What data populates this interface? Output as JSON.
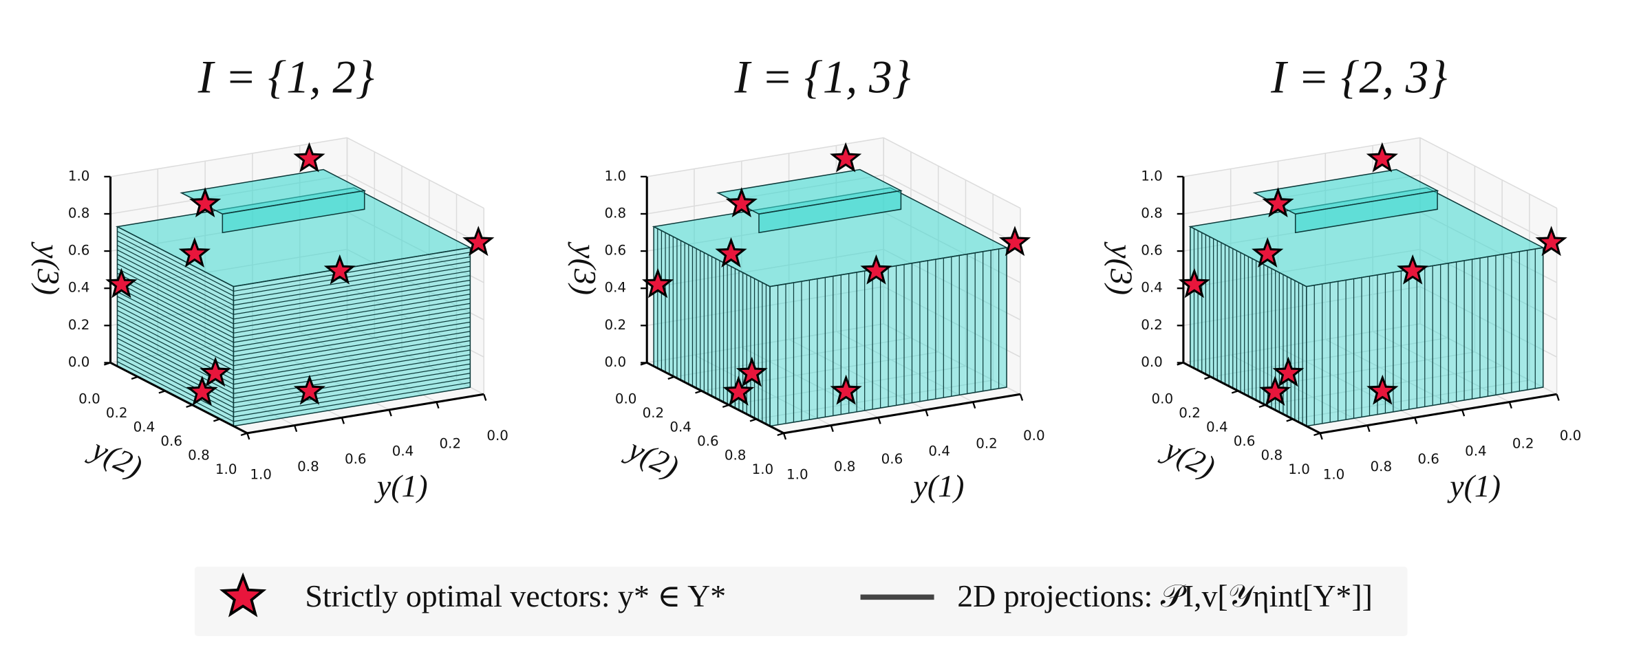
{
  "chart_data": [
    {
      "type": "scatter3d",
      "title": "I = {1, 2}",
      "xlabel": "y(1)",
      "ylabel": "y(2)",
      "zlabel": "y(3)",
      "xlim": [
        0,
        1
      ],
      "ylim": [
        0,
        1
      ],
      "zlim": [
        0,
        1
      ],
      "xticks": [
        {
          "value": 0,
          "label": "0.0"
        },
        {
          "value": 0.2,
          "label": "0.2"
        },
        {
          "value": 0.4,
          "label": "0.4"
        },
        {
          "value": 0.6,
          "label": "0.6"
        },
        {
          "value": 0.8,
          "label": "0.8"
        },
        {
          "value": 1,
          "label": "1.0"
        }
      ],
      "yticks": [
        {
          "value": 0,
          "label": "0.0"
        },
        {
          "value": 0.2,
          "label": "0.2"
        },
        {
          "value": 0.4,
          "label": "0.4"
        },
        {
          "value": 0.6,
          "label": "0.6"
        },
        {
          "value": 0.8,
          "label": "0.8"
        },
        {
          "value": 1,
          "label": "1.0"
        }
      ],
      "zticks": [
        {
          "value": 0,
          "label": "0.0"
        },
        {
          "value": 0.2,
          "label": "0.2"
        },
        {
          "value": 0.4,
          "label": "0.4"
        },
        {
          "value": 0.6,
          "label": "0.6"
        },
        {
          "value": 0.8,
          "label": "0.8"
        },
        {
          "value": 1,
          "label": "1.0"
        }
      ],
      "color": "#e8163c",
      "points": {
        "x": [
          1,
          0.6,
          0.76,
          0.16,
          0.32,
          0,
          0.73,
          0.89,
          0.54
        ],
        "y": [
          0.08,
          0,
          0.2,
          0,
          0.5,
          0.96,
          0.3,
          0.48,
          0.66
        ],
        "z": [
          0.45,
          0.77,
          0.61,
          0.92,
          0.54,
          0.8,
          0,
          0,
          0
        ]
      }
    },
    {
      "type": "scatter3d",
      "title": "I = {1, 3}",
      "xlabel": "y(1)",
      "ylabel": "y(2)",
      "zlabel": "y(3)",
      "xlim": [
        0,
        1
      ],
      "ylim": [
        0,
        1
      ],
      "zlim": [
        0,
        1
      ],
      "xticks": [
        {
          "value": 0,
          "label": "0.0"
        },
        {
          "value": 0.2,
          "label": "0.2"
        },
        {
          "value": 0.4,
          "label": "0.4"
        },
        {
          "value": 0.6,
          "label": "0.6"
        },
        {
          "value": 0.8,
          "label": "0.8"
        },
        {
          "value": 1,
          "label": "1.0"
        }
      ],
      "yticks": [
        {
          "value": 0,
          "label": "0.0"
        },
        {
          "value": 0.2,
          "label": "0.2"
        },
        {
          "value": 0.4,
          "label": "0.4"
        },
        {
          "value": 0.6,
          "label": "0.6"
        },
        {
          "value": 0.8,
          "label": "0.8"
        },
        {
          "value": 1,
          "label": "1.0"
        }
      ],
      "zticks": [
        {
          "value": 0,
          "label": "0.0"
        },
        {
          "value": 0.2,
          "label": "0.2"
        },
        {
          "value": 0.4,
          "label": "0.4"
        },
        {
          "value": 0.6,
          "label": "0.6"
        },
        {
          "value": 0.8,
          "label": "0.8"
        },
        {
          "value": 1,
          "label": "1.0"
        }
      ],
      "color": "#e8163c",
      "points": {
        "x": [
          1,
          0.6,
          0.76,
          0.16,
          0.32,
          0,
          0.73,
          0.89,
          0.54
        ],
        "y": [
          0.08,
          0,
          0.2,
          0,
          0.5,
          0.96,
          0.3,
          0.48,
          0.66
        ],
        "z": [
          0.45,
          0.77,
          0.61,
          0.92,
          0.54,
          0.8,
          0,
          0,
          0
        ]
      }
    },
    {
      "type": "scatter3d",
      "title": "I = {2, 3}",
      "xlabel": "y(1)",
      "ylabel": "y(2)",
      "zlabel": "y(3)",
      "xlim": [
        0,
        1
      ],
      "ylim": [
        0,
        1
      ],
      "zlim": [
        0,
        1
      ],
      "xticks": [
        {
          "value": 0,
          "label": "0.0"
        },
        {
          "value": 0.2,
          "label": "0.2"
        },
        {
          "value": 0.4,
          "label": "0.4"
        },
        {
          "value": 0.6,
          "label": "0.6"
        },
        {
          "value": 0.8,
          "label": "0.8"
        },
        {
          "value": 1,
          "label": "1.0"
        }
      ],
      "yticks": [
        {
          "value": 0,
          "label": "0.0"
        },
        {
          "value": 0.2,
          "label": "0.2"
        },
        {
          "value": 0.4,
          "label": "0.4"
        },
        {
          "value": 0.6,
          "label": "0.6"
        },
        {
          "value": 0.8,
          "label": "0.8"
        },
        {
          "value": 1,
          "label": "1.0"
        }
      ],
      "zticks": [
        {
          "value": 0,
          "label": "0.0"
        },
        {
          "value": 0.2,
          "label": "0.2"
        },
        {
          "value": 0.4,
          "label": "0.4"
        },
        {
          "value": 0.6,
          "label": "0.6"
        },
        {
          "value": 0.8,
          "label": "0.8"
        },
        {
          "value": 1,
          "label": "1.0"
        }
      ],
      "color": "#e8163c",
      "points": {
        "x": [
          1,
          0.6,
          0.76,
          0.16,
          0.32,
          0,
          0.73,
          0.89,
          0.54
        ],
        "y": [
          0.08,
          0,
          0.2,
          0,
          0.5,
          0.96,
          0.3,
          0.48,
          0.66
        ],
        "z": [
          0.45,
          0.77,
          0.61,
          0.92,
          0.54,
          0.8,
          0,
          0,
          0
        ]
      }
    }
  ],
  "legend": [
    {
      "label": "Strictly optimal vectors: y* ∈ Y*",
      "marker": "star",
      "color": "#e8163c"
    },
    {
      "label": "2D projections: 𝒫I,v[𝒴ηint[Y*]]",
      "marker": "line",
      "color": "#444444"
    }
  ]
}
